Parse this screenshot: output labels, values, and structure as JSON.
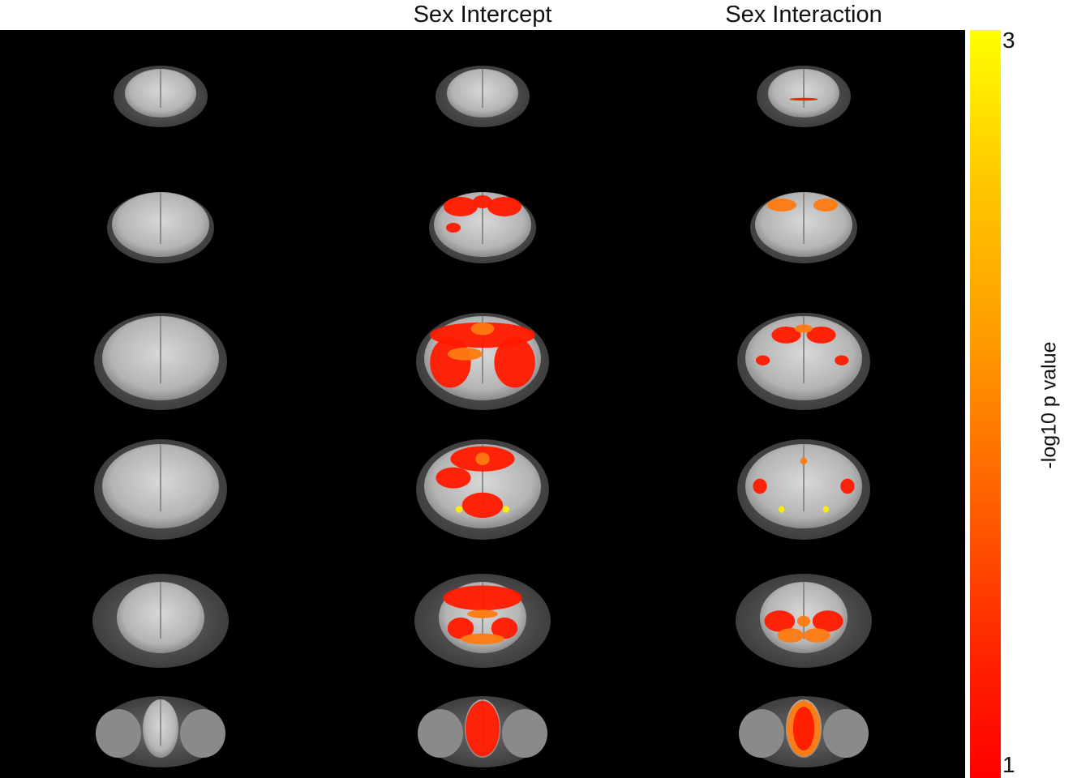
{
  "columns": [
    {
      "title": "",
      "overlay": "none"
    },
    {
      "title": "Sex Intercept",
      "overlay": "intercept"
    },
    {
      "title": "Sex Interaction",
      "overlay": "interaction"
    }
  ],
  "colorbar": {
    "label": "-log10 p value",
    "max_label": "3",
    "min_label": "1",
    "min": 1,
    "max": 3,
    "colormap": [
      "#ff0000",
      "#ff5a00",
      "#ff9a00",
      "#ffc800",
      "#ffff00"
    ]
  },
  "slices": [
    "slice-1",
    "slice-2",
    "slice-3",
    "slice-4",
    "slice-5",
    "slice-6"
  ],
  "colors": {
    "background": "#000000",
    "tissue": "#c8c8c8",
    "red": "#ff1a00",
    "orange": "#ff7a10",
    "yellow": "#ffee00"
  }
}
